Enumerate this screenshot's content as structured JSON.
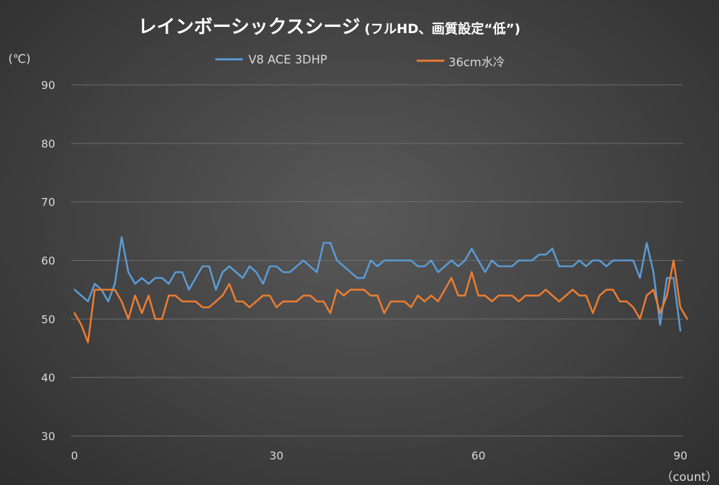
{
  "chart_data": {
    "type": "line",
    "title": "レインボーシックスシージ",
    "subtitle": "(フルHD、画質設定“低”)",
    "y_unit": "(℃)",
    "x_unit": "（count）",
    "xlim": [
      0,
      90
    ],
    "ylim": [
      30,
      90
    ],
    "x_ticks": [
      "0",
      "30",
      "60",
      "90"
    ],
    "y_ticks": [
      "30",
      "40",
      "50",
      "60",
      "70",
      "80",
      "90"
    ],
    "grid": "horizontal",
    "legend_position": "top",
    "series": [
      {
        "name": "V8 ACE 3DHP",
        "color": "#5b9bd5",
        "values": [
          55,
          54,
          53,
          56,
          55,
          53,
          56,
          64,
          58,
          56,
          57,
          56,
          57,
          57,
          56,
          58,
          58,
          55,
          57,
          59,
          59,
          55,
          58,
          59,
          58,
          57,
          59,
          58,
          56,
          59,
          59,
          58,
          58,
          59,
          60,
          59,
          58,
          63,
          63,
          60,
          59,
          58,
          57,
          57,
          60,
          59,
          60,
          60,
          60,
          60,
          60,
          59,
          59,
          60,
          58,
          59,
          60,
          59,
          60,
          62,
          60,
          58,
          60,
          59,
          59,
          59,
          60,
          60,
          60,
          61,
          61,
          62,
          59,
          59,
          59,
          60,
          59,
          60,
          60,
          59,
          60,
          60,
          60,
          60,
          57,
          63,
          58,
          49,
          57,
          57,
          48
        ]
      },
      {
        "name": "36cm水冷",
        "color": "#ed7d31",
        "values": [
          51,
          49,
          46,
          55,
          55,
          55,
          55,
          53,
          50,
          54,
          51,
          54,
          50,
          50,
          54,
          54,
          53,
          53,
          53,
          52,
          52,
          53,
          54,
          56,
          53,
          53,
          52,
          53,
          54,
          54,
          52,
          53,
          53,
          53,
          54,
          54,
          53,
          53,
          51,
          55,
          54,
          55,
          55,
          55,
          54,
          54,
          51,
          53,
          53,
          53,
          52,
          54,
          53,
          54,
          53,
          55,
          57,
          54,
          54,
          58,
          54,
          54,
          53,
          54,
          54,
          54,
          53,
          54,
          54,
          54,
          55,
          54,
          53,
          54,
          55,
          54,
          54,
          51,
          54,
          55,
          55,
          53,
          53,
          52,
          50,
          54,
          55,
          51,
          54,
          60,
          52,
          50
        ]
      }
    ]
  }
}
